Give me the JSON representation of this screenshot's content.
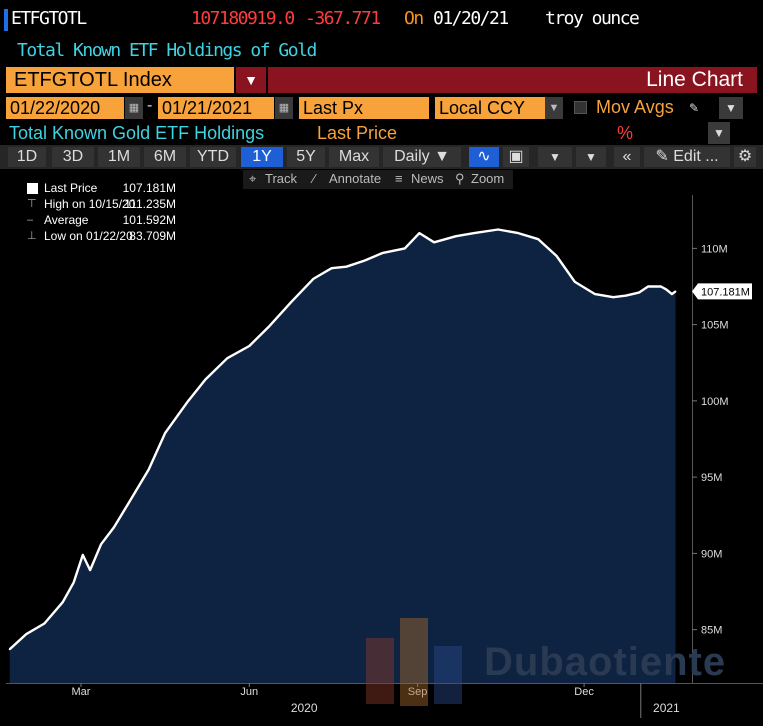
{
  "header": {
    "ticker": "ETFGTOTL",
    "last_value": "107180919.0",
    "change": "-367.771",
    "on_label": "On",
    "date": "01/20/21",
    "unit": "troy ounce",
    "description": "Total Known ETF Holdings of Gold"
  },
  "security": {
    "index_label": "ETFGTOTL Index",
    "chart_type": "Line Chart"
  },
  "controls": {
    "start_date": "01/22/2020",
    "end_date": "01/21/2021",
    "field": "Last Px",
    "currency": "Local CCY",
    "mov_avgs": "Mov Avgs"
  },
  "subheader": {
    "series_title": "Total Known Gold ETF Holdings",
    "field_label": "Last Price",
    "pct_label": "%"
  },
  "toolbar": {
    "periods": [
      "1D",
      "3D",
      "1M",
      "6M",
      "YTD",
      "1Y",
      "5Y",
      "Max"
    ],
    "selected_period": "1Y",
    "frequency": "Daily",
    "edit_label": "Edit ..."
  },
  "chart_tools": [
    "Track",
    "Annotate",
    "News",
    "Zoom"
  ],
  "legend": {
    "last": {
      "label": "Last Price",
      "value": "107.181M"
    },
    "high": {
      "label": "High on 10/15/20",
      "value": "111.235M"
    },
    "avg": {
      "label": "Average",
      "value": "101.592M"
    },
    "low": {
      "label": "Low on 01/22/20",
      "value": "83.709M"
    }
  },
  "watermark": "Dubaotiente",
  "colors": {
    "line": "#ffffff",
    "fill": "#0e2341",
    "accent_orange": "#f7a23a",
    "accent_red": "#ff3b3b",
    "accent_cyan": "#3fd2e0",
    "title_bar": "#8a1320"
  },
  "chart_data": {
    "type": "area",
    "title": "Total Known Gold ETF Holdings",
    "ylabel": "",
    "xlabel": "",
    "y_unit": "M troy ounce",
    "ylim": [
      81.5,
      113.5
    ],
    "y_ticks": [
      85,
      90,
      95,
      100,
      105,
      110
    ],
    "y_tick_labels": [
      "85M",
      "90M",
      "95M",
      "100M",
      "105M",
      "110M"
    ],
    "x_ticks": [
      "Mar",
      "Jun",
      "Sep",
      "Dec"
    ],
    "x_ticks_dates": [
      "2020-03-01",
      "2020-06-01",
      "2020-09-01",
      "2020-12-01"
    ],
    "year_labels": [
      {
        "label": "2020",
        "date": "2020-07-01"
      },
      {
        "label": "2021",
        "date": "2021-01-15"
      }
    ],
    "last_label": "107.181M",
    "last_value": 107.181,
    "series": [
      {
        "name": "Last Price",
        "x": [
          "2020-01-22",
          "2020-01-31",
          "2020-02-10",
          "2020-02-20",
          "2020-02-26",
          "2020-03-02",
          "2020-03-06",
          "2020-03-12",
          "2020-03-19",
          "2020-03-27",
          "2020-04-07",
          "2020-04-16",
          "2020-04-28",
          "2020-05-08",
          "2020-05-20",
          "2020-06-01",
          "2020-06-12",
          "2020-06-24",
          "2020-07-06",
          "2020-07-16",
          "2020-07-24",
          "2020-08-03",
          "2020-08-13",
          "2020-08-25",
          "2020-09-02",
          "2020-09-10",
          "2020-09-22",
          "2020-10-02",
          "2020-10-15",
          "2020-10-26",
          "2020-11-06",
          "2020-11-16",
          "2020-11-26",
          "2020-12-07",
          "2020-12-17",
          "2020-12-24",
          "2020-12-31",
          "2021-01-05",
          "2021-01-12",
          "2021-01-15",
          "2021-01-18",
          "2021-01-20"
        ],
        "values": [
          83.709,
          84.7,
          85.4,
          86.8,
          88.1,
          89.9,
          88.9,
          90.6,
          91.7,
          93.3,
          95.5,
          97.9,
          99.9,
          101.4,
          102.8,
          103.6,
          104.9,
          106.5,
          108.0,
          108.7,
          108.8,
          109.2,
          109.7,
          110.0,
          111.0,
          110.4,
          110.8,
          111.0,
          111.235,
          111.0,
          110.6,
          109.5,
          107.8,
          107.0,
          106.8,
          106.9,
          107.1,
          107.5,
          107.5,
          107.3,
          107.0,
          107.181
        ]
      }
    ],
    "grid": false,
    "legend_position": "top-left"
  }
}
